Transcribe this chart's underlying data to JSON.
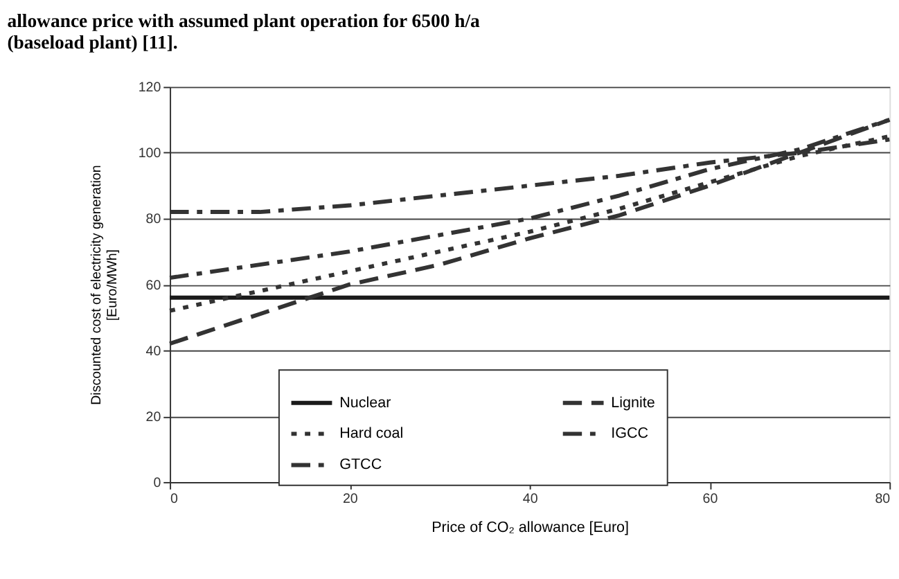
{
  "chart_data": {
    "type": "line",
    "title": "allowance price with assumed plant operation for 6500 h/a (baseload plant) [11].",
    "xlabel": "Price of CO₂ allowance [Euro]",
    "ylabel": "Discounted cost of electricity generation [Euro/MWh]",
    "x": [
      0,
      10,
      20,
      30,
      40,
      50,
      60,
      70,
      80
    ],
    "series": [
      {
        "name": "Nuclear",
        "color": "#1a1a1a",
        "line_style": "solid",
        "values": [
          56,
          56,
          56,
          56,
          56,
          56,
          56,
          56,
          56
        ]
      },
      {
        "name": "Hard coal",
        "color": "#333333",
        "line_style": "dotted",
        "values": [
          52,
          58,
          64,
          70,
          76,
          83,
          91,
          99,
          105
        ]
      },
      {
        "name": "GTCC",
        "color": "#333333",
        "line_style": "dashdot",
        "values": [
          62,
          66,
          70,
          75,
          80,
          87,
          95,
          101,
          110
        ]
      },
      {
        "name": "Lignite",
        "color": "#333333",
        "line_style": "dashed",
        "values": [
          42,
          51,
          60,
          66,
          74,
          81,
          90,
          100,
          110
        ]
      },
      {
        "name": "IGCC",
        "color": "#333333",
        "line_style": "dashdot",
        "values": [
          82,
          82,
          84,
          87,
          90,
          93,
          97,
          100,
          104
        ]
      }
    ],
    "xlim": [
      0,
      80
    ],
    "xticks": [
      0,
      20,
      40,
      60,
      80
    ],
    "ylim": [
      0,
      120
    ],
    "yticks": [
      0,
      20,
      40,
      60,
      80,
      100,
      120
    ],
    "grid": "y",
    "legend": "bottom"
  }
}
